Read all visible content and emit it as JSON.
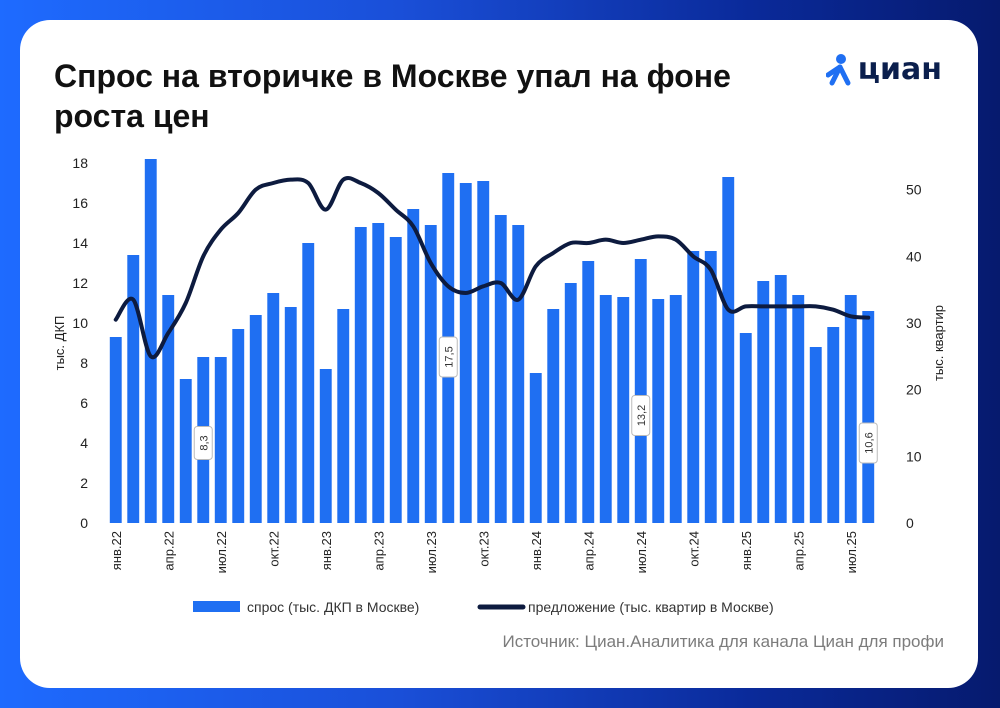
{
  "title": "Спрос на вторичке в Москве упал на фоне роста цен",
  "brand": "циан",
  "source": "Источник: Циан.Аналитика для канала Циан для профи",
  "colors": {
    "bar": "#1f6ff2",
    "line": "#0d1b3f"
  },
  "chart_data": {
    "type": "bar",
    "categories": [
      "янв.22",
      "фев.22",
      "мар.22",
      "апр.22",
      "май.22",
      "июн.22",
      "июл.22",
      "авг.22",
      "сен.22",
      "окт.22",
      "ноя.22",
      "дек.22",
      "янв.23",
      "фев.23",
      "мар.23",
      "апр.23",
      "май.23",
      "июн.23",
      "июл.23",
      "авг.23",
      "сен.23",
      "окт.23",
      "ноя.23",
      "дек.23",
      "янв.24",
      "фев.24",
      "мар.24",
      "апр.24",
      "май.24",
      "июн.24",
      "июл.24",
      "авг.24",
      "сен.24",
      "окт.24",
      "ноя.24",
      "дек.24",
      "янв.25",
      "фев.25",
      "мар.25",
      "апр.25",
      "май.25",
      "июн.25",
      "июл.25",
      "авг.25"
    ],
    "tick_labels": [
      "янв.22",
      "апр.22",
      "июл.22",
      "окт.22",
      "янв.23",
      "апр.23",
      "июл.23",
      "окт.23",
      "янв.24",
      "апр.24",
      "июл.24",
      "окт.24",
      "янв.25",
      "апр.25",
      "июл.25"
    ],
    "series": [
      {
        "name": "спрос (тыс. ДКП в Москве)",
        "axis": "left",
        "values": [
          9.3,
          13.4,
          18.2,
          11.4,
          7.2,
          8.3,
          8.3,
          9.7,
          10.4,
          11.5,
          10.8,
          14.0,
          7.7,
          10.7,
          14.8,
          15.0,
          14.3,
          15.7,
          14.9,
          17.5,
          17.0,
          17.1,
          15.4,
          14.9,
          7.5,
          10.7,
          12.0,
          13.1,
          11.4,
          11.3,
          13.2,
          11.2,
          11.4,
          13.6,
          13.6,
          17.3,
          9.5,
          12.1,
          12.4,
          11.4,
          8.8,
          9.8,
          11.4,
          10.6
        ]
      },
      {
        "name": "предложение (тыс. квартир в Москве)",
        "axis": "right",
        "values": [
          30.5,
          33.5,
          25.0,
          28.5,
          33.0,
          40.0,
          44.0,
          46.5,
          50.0,
          51.0,
          51.5,
          51.0,
          47.0,
          51.5,
          51.0,
          49.5,
          47.0,
          44.5,
          39.0,
          35.5,
          34.5,
          35.5,
          36.0,
          33.5,
          38.5,
          40.5,
          42.0,
          42.0,
          42.5,
          42.0,
          42.5,
          43.0,
          42.5,
          40.0,
          38.0,
          32.0,
          32.5,
          32.5,
          32.5,
          32.5,
          32.5,
          32.0,
          31.0,
          30.8
        ]
      }
    ],
    "annotations": [
      {
        "category": "июн.22",
        "text": "8,3"
      },
      {
        "category": "авг.23",
        "text": "17,5"
      },
      {
        "category": "июл.24",
        "text": "13,2"
      },
      {
        "category": "авг.25",
        "text": "10,6"
      }
    ],
    "ylabel": "тыс. ДКП",
    "y2label": "тыс. квартир",
    "ylim": [
      0,
      18
    ],
    "yticks": [
      "0",
      "2",
      "4",
      "6",
      "8",
      "10",
      "12",
      "14",
      "16",
      "18"
    ],
    "y2lim": [
      0,
      54
    ],
    "y2ticks": [
      "0",
      "10",
      "20",
      "30",
      "40",
      "50"
    ],
    "legend": [
      "спрос (тыс. ДКП в Москве)",
      "предложение (тыс. квартир в Москве)"
    ],
    "legend_position": "bottom",
    "grid": false
  }
}
